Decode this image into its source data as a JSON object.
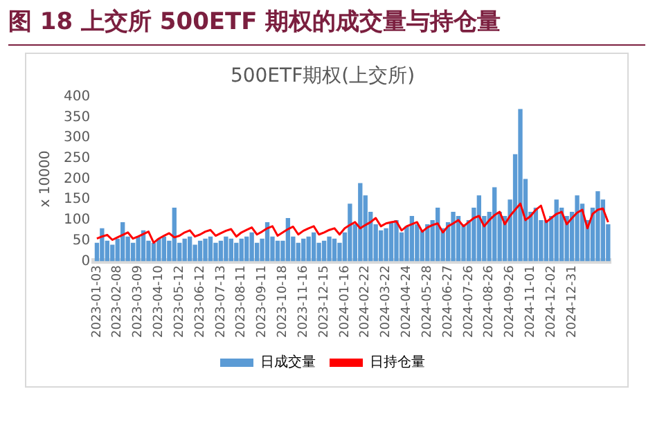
{
  "chart_data": {
    "type": "bar",
    "title": "图 18 上交所 500ETF 期权的成交量与持仓量",
    "subtitle": "500ETF期权(上交所)",
    "ylabel": "x 10000",
    "categories": [
      "2023-01-03",
      null,
      null,
      null,
      "2023-02-08",
      null,
      null,
      null,
      "2023-03-09",
      null,
      null,
      null,
      "2023-04-10",
      null,
      null,
      null,
      "2023-05-12",
      null,
      null,
      null,
      "2023-06-12",
      null,
      null,
      null,
      "2023-07-13",
      null,
      null,
      null,
      "2023-08-11",
      null,
      null,
      null,
      "2023-09-11",
      null,
      null,
      null,
      "2023-10-18",
      null,
      null,
      null,
      "2023-11-16",
      null,
      null,
      null,
      "2023-12-15",
      null,
      null,
      null,
      "2024-01-16",
      null,
      null,
      null,
      "2024-02-22",
      null,
      null,
      null,
      "2024-03-22",
      null,
      null,
      null,
      "2024-04-24",
      null,
      null,
      null,
      "2024-05-28",
      null,
      null,
      null,
      "2024-06-27",
      null,
      null,
      null,
      "2024-07-26",
      null,
      null,
      null,
      "2024-08-26",
      null,
      null,
      null,
      "2024-09-26",
      null,
      null,
      null,
      "2024-11-01",
      null,
      null,
      null,
      "2024-12-02",
      null,
      null,
      null,
      "2024-12-31",
      null,
      null,
      null,
      null,
      null,
      null,
      null
    ],
    "series": [
      {
        "name": "日成交量",
        "color": "#5b9bd5",
        "values": [
          45,
          80,
          50,
          40,
          55,
          95,
          60,
          45,
          60,
          75,
          50,
          45,
          55,
          60,
          50,
          130,
          45,
          55,
          60,
          40,
          50,
          55,
          60,
          45,
          50,
          60,
          55,
          45,
          55,
          60,
          70,
          45,
          55,
          95,
          60,
          50,
          50,
          105,
          60,
          45,
          55,
          60,
          70,
          45,
          50,
          60,
          55,
          45,
          70,
          140,
          90,
          190,
          160,
          120,
          90,
          75,
          80,
          95,
          100,
          70,
          85,
          110,
          90,
          75,
          90,
          100,
          130,
          80,
          95,
          120,
          110,
          90,
          100,
          130,
          160,
          110,
          120,
          180,
          120,
          110,
          150,
          260,
          370,
          200,
          120,
          130,
          100,
          100,
          110,
          150,
          130,
          110,
          120,
          160,
          140,
          100,
          130,
          170,
          150,
          90
        ]
      },
      {
        "name": "日持仓量",
        "type": "line",
        "color": "#ff0000",
        "values": [
          55,
          60,
          64,
          52,
          58,
          64,
          70,
          55,
          60,
          66,
          72,
          45,
          55,
          62,
          68,
          58,
          62,
          70,
          75,
          60,
          65,
          72,
          76,
          62,
          68,
          74,
          78,
          60,
          70,
          76,
          82,
          65,
          72,
          80,
          85,
          62,
          70,
          78,
          84,
          65,
          74,
          80,
          85,
          65,
          70,
          76,
          80,
          65,
          80,
          88,
          95,
          80,
          88,
          95,
          105,
          85,
          92,
          95,
          97,
          75,
          85,
          90,
          95,
          72,
          82,
          88,
          92,
          70,
          85,
          92,
          100,
          85,
          95,
          105,
          110,
          85,
          100,
          112,
          120,
          90,
          110,
          125,
          140,
          100,
          110,
          125,
          135,
          95,
          105,
          115,
          120,
          90,
          105,
          118,
          125,
          80,
          115,
          125,
          128,
          95
        ]
      }
    ],
    "ylim": [
      0,
      400
    ],
    "yticks": [
      0,
      50,
      100,
      150,
      200,
      250,
      300,
      350,
      400
    ],
    "grid": false,
    "legend": "bottom",
    "marker": "none"
  }
}
